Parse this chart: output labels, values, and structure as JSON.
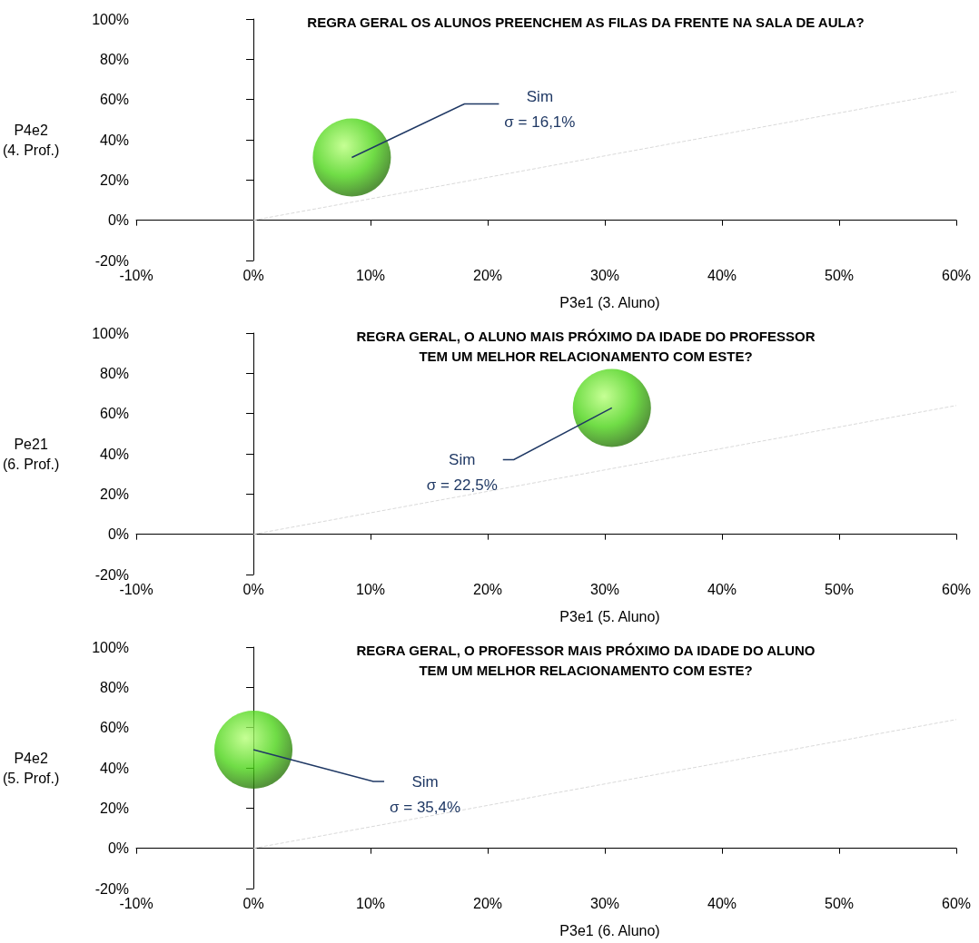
{
  "chart_data": [
    {
      "type": "scatter",
      "title": "REGRA GERAL OS ALUNOS PREENCHEM AS FILAS DA FRENTE NA SALA DE AULA?",
      "xlabel": "P3e1 (3. Aluno)",
      "ylabel": "P4e2\n(4. Prof.)",
      "xlim": [
        -10,
        60
      ],
      "ylim": [
        -20,
        100
      ],
      "xticks": [
        {
          "value": -10,
          "label": "-10%"
        },
        {
          "value": 0,
          "label": "0%"
        },
        {
          "value": 10,
          "label": "10%"
        },
        {
          "value": 20,
          "label": "20%"
        },
        {
          "value": 30,
          "label": "30%"
        },
        {
          "value": 40,
          "label": "40%"
        },
        {
          "value": 50,
          "label": "50%"
        },
        {
          "value": 60,
          "label": "60%"
        }
      ],
      "yticks": [
        {
          "value": -20,
          "label": "-20%"
        },
        {
          "value": 0,
          "label": "0%"
        },
        {
          "value": 20,
          "label": "20%"
        },
        {
          "value": 40,
          "label": "40%"
        },
        {
          "value": 60,
          "label": "60%"
        },
        {
          "value": 80,
          "label": "80%"
        },
        {
          "value": 100,
          "label": "100%"
        }
      ],
      "series": [
        {
          "color": "#4cd418",
          "x": [
            8.4
          ],
          "values": [
            31.2
          ]
        },
        {
          "type": "line",
          "color": "#d9d9d9",
          "line_style": "dashed",
          "x": [
            0,
            60
          ],
          "values": [
            0,
            64
          ]
        }
      ],
      "annotations": [
        {
          "text": "Sim\nσ = 16,1%",
          "x": 8.4,
          "y": 31.2
        }
      ]
    },
    {
      "type": "scatter",
      "title": "REGRA GERAL, O ALUNO MAIS PRÓXIMO DA IDADE DO PROFESSOR\nTEM UM MELHOR RELACIONAMENTO COM ESTE?",
      "xlabel": "P3e1 (5. Aluno)",
      "ylabel": "Pe21\n(6. Prof.)",
      "xlim": [
        -10,
        60
      ],
      "ylim": [
        -20,
        100
      ],
      "xticks": [
        {
          "value": -10,
          "label": "-10%"
        },
        {
          "value": 0,
          "label": "0%"
        },
        {
          "value": 10,
          "label": "10%"
        },
        {
          "value": 20,
          "label": "20%"
        },
        {
          "value": 30,
          "label": "30%"
        },
        {
          "value": 40,
          "label": "40%"
        },
        {
          "value": 50,
          "label": "50%"
        },
        {
          "value": 60,
          "label": "60%"
        }
      ],
      "yticks": [
        {
          "value": -20,
          "label": "-20%"
        },
        {
          "value": 0,
          "label": "0%"
        },
        {
          "value": 20,
          "label": "20%"
        },
        {
          "value": 40,
          "label": "40%"
        },
        {
          "value": 60,
          "label": "60%"
        },
        {
          "value": 80,
          "label": "80%"
        },
        {
          "value": 100,
          "label": "100%"
        }
      ],
      "series": [
        {
          "color": "#4cd418",
          "x": [
            30.6
          ],
          "values": [
            62.8
          ]
        },
        {
          "type": "line",
          "color": "#d9d9d9",
          "line_style": "dashed",
          "x": [
            0,
            60
          ],
          "values": [
            0,
            64
          ]
        }
      ],
      "annotations": [
        {
          "text": "Sim\nσ = 22,5%",
          "x": 30.6,
          "y": 62.8
        }
      ]
    },
    {
      "type": "scatter",
      "title": "REGRA GERAL, O PROFESSOR MAIS PRÓXIMO DA IDADE DO ALUNO\nTEM UM MELHOR RELACIONAMENTO COM ESTE?",
      "xlabel": "P3e1 (6. Aluno)",
      "ylabel": "P4e2\n(5. Prof.)",
      "xlim": [
        -10,
        60
      ],
      "ylim": [
        -20,
        100
      ],
      "xticks": [
        {
          "value": -10,
          "label": "-10%"
        },
        {
          "value": 0,
          "label": "0%"
        },
        {
          "value": 10,
          "label": "10%"
        },
        {
          "value": 20,
          "label": "20%"
        },
        {
          "value": 30,
          "label": "30%"
        },
        {
          "value": 40,
          "label": "40%"
        },
        {
          "value": 50,
          "label": "50%"
        },
        {
          "value": 60,
          "label": "60%"
        }
      ],
      "yticks": [
        {
          "value": -20,
          "label": "-20%"
        },
        {
          "value": 0,
          "label": "0%"
        },
        {
          "value": 20,
          "label": "20%"
        },
        {
          "value": 40,
          "label": "40%"
        },
        {
          "value": 60,
          "label": "60%"
        },
        {
          "value": 80,
          "label": "80%"
        },
        {
          "value": 100,
          "label": "100%"
        }
      ],
      "series": [
        {
          "color": "#4cd418",
          "x": [
            0
          ],
          "values": [
            49
          ]
        },
        {
          "type": "line",
          "color": "#d9d9d9",
          "line_style": "dashed",
          "x": [
            0,
            60
          ],
          "values": [
            0,
            64
          ]
        }
      ],
      "annotations": [
        {
          "text": "Sim\nσ = 35,4%",
          "x": 0,
          "y": 49
        }
      ]
    }
  ]
}
